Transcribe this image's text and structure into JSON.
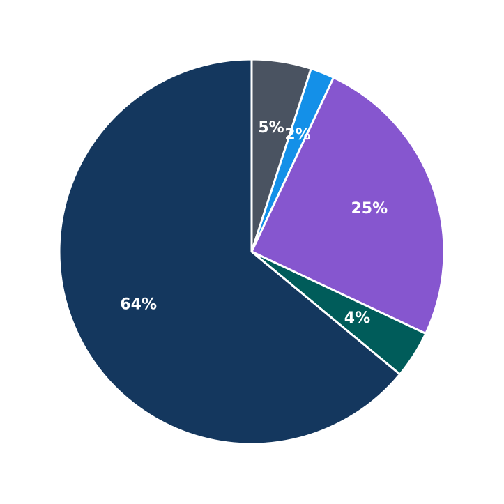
{
  "chart_data": {
    "type": "pie",
    "values": [
      5,
      2,
      25,
      4,
      64
    ],
    "value_labels": [
      "5%",
      "2%",
      "25%",
      "4%",
      "64%"
    ],
    "colors": [
      "#4a5361",
      "#1490e8",
      "#8656cf",
      "#005c5a",
      "#14375e"
    ]
  }
}
